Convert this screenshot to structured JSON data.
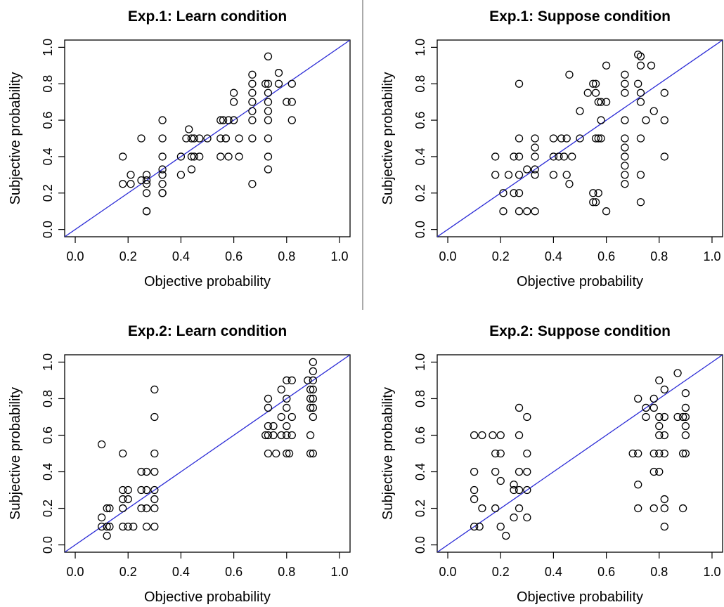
{
  "figure": {
    "line_color": "#2b2bd6",
    "marker": "open-circle"
  },
  "chart_data": [
    {
      "type": "scatter",
      "title": "Exp.1: Learn condition",
      "xlabel": "Objective probability",
      "ylabel": "Subjective probability",
      "xlim": [
        0,
        1
      ],
      "ylim": [
        0,
        1
      ],
      "xticks": [
        "0.0",
        "0.2",
        "0.4",
        "0.6",
        "0.8",
        "1.0"
      ],
      "yticks": [
        "0.0",
        "0.2",
        "0.4",
        "0.6",
        "0.8",
        "1.0"
      ],
      "reference_line": "y = x",
      "points": [
        [
          0.18,
          0.4
        ],
        [
          0.18,
          0.25
        ],
        [
          0.21,
          0.3
        ],
        [
          0.21,
          0.25
        ],
        [
          0.25,
          0.5
        ],
        [
          0.25,
          0.27
        ],
        [
          0.27,
          0.3
        ],
        [
          0.27,
          0.27
        ],
        [
          0.27,
          0.25
        ],
        [
          0.27,
          0.2
        ],
        [
          0.27,
          0.1
        ],
        [
          0.27,
          0.1
        ],
        [
          0.33,
          0.6
        ],
        [
          0.33,
          0.5
        ],
        [
          0.33,
          0.4
        ],
        [
          0.33,
          0.33
        ],
        [
          0.33,
          0.3
        ],
        [
          0.33,
          0.25
        ],
        [
          0.33,
          0.2
        ],
        [
          0.33,
          0.2
        ],
        [
          0.4,
          0.4
        ],
        [
          0.4,
          0.3
        ],
        [
          0.42,
          0.5
        ],
        [
          0.43,
          0.55
        ],
        [
          0.44,
          0.5
        ],
        [
          0.45,
          0.5
        ],
        [
          0.44,
          0.4
        ],
        [
          0.45,
          0.4
        ],
        [
          0.44,
          0.33
        ],
        [
          0.47,
          0.4
        ],
        [
          0.47,
          0.5
        ],
        [
          0.5,
          0.5
        ],
        [
          0.55,
          0.6
        ],
        [
          0.55,
          0.5
        ],
        [
          0.56,
          0.6
        ],
        [
          0.57,
          0.5
        ],
        [
          0.57,
          0.5
        ],
        [
          0.58,
          0.6
        ],
        [
          0.55,
          0.4
        ],
        [
          0.58,
          0.4
        ],
        [
          0.6,
          0.7
        ],
        [
          0.6,
          0.75
        ],
        [
          0.6,
          0.6
        ],
        [
          0.62,
          0.5
        ],
        [
          0.62,
          0.4
        ],
        [
          0.67,
          0.85
        ],
        [
          0.67,
          0.8
        ],
        [
          0.67,
          0.75
        ],
        [
          0.67,
          0.7
        ],
        [
          0.67,
          0.65
        ],
        [
          0.67,
          0.6
        ],
        [
          0.67,
          0.5
        ],
        [
          0.67,
          0.25
        ],
        [
          0.72,
          0.8
        ],
        [
          0.73,
          0.95
        ],
        [
          0.73,
          0.8
        ],
        [
          0.73,
          0.75
        ],
        [
          0.73,
          0.7
        ],
        [
          0.73,
          0.65
        ],
        [
          0.73,
          0.6
        ],
        [
          0.73,
          0.5
        ],
        [
          0.73,
          0.4
        ],
        [
          0.73,
          0.33
        ],
        [
          0.77,
          0.86
        ],
        [
          0.77,
          0.8
        ],
        [
          0.8,
          0.7
        ],
        [
          0.82,
          0.8
        ],
        [
          0.82,
          0.7
        ],
        [
          0.82,
          0.6
        ]
      ]
    },
    {
      "type": "scatter",
      "title": "Exp.1: Suppose condition",
      "xlabel": "Objective probability",
      "ylabel": "Subjective probability",
      "xlim": [
        0,
        1
      ],
      "ylim": [
        0,
        1
      ],
      "xticks": [
        "0.0",
        "0.2",
        "0.4",
        "0.6",
        "0.8",
        "1.0"
      ],
      "yticks": [
        "0.0",
        "0.2",
        "0.4",
        "0.6",
        "0.8",
        "1.0"
      ],
      "reference_line": "y = x",
      "points": [
        [
          0.18,
          0.4
        ],
        [
          0.18,
          0.3
        ],
        [
          0.21,
          0.2
        ],
        [
          0.21,
          0.1
        ],
        [
          0.23,
          0.3
        ],
        [
          0.25,
          0.4
        ],
        [
          0.25,
          0.2
        ],
        [
          0.27,
          0.8
        ],
        [
          0.27,
          0.5
        ],
        [
          0.27,
          0.4
        ],
        [
          0.27,
          0.3
        ],
        [
          0.27,
          0.2
        ],
        [
          0.27,
          0.1
        ],
        [
          0.3,
          0.33
        ],
        [
          0.3,
          0.1
        ],
        [
          0.33,
          0.5
        ],
        [
          0.33,
          0.45
        ],
        [
          0.33,
          0.4
        ],
        [
          0.33,
          0.33
        ],
        [
          0.33,
          0.3
        ],
        [
          0.33,
          0.1
        ],
        [
          0.4,
          0.5
        ],
        [
          0.4,
          0.4
        ],
        [
          0.4,
          0.3
        ],
        [
          0.42,
          0.4
        ],
        [
          0.43,
          0.5
        ],
        [
          0.44,
          0.4
        ],
        [
          0.45,
          0.5
        ],
        [
          0.45,
          0.3
        ],
        [
          0.46,
          0.25
        ],
        [
          0.47,
          0.4
        ],
        [
          0.5,
          0.5
        ],
        [
          0.46,
          0.85
        ],
        [
          0.5,
          0.65
        ],
        [
          0.53,
          0.75
        ],
        [
          0.55,
          0.8
        ],
        [
          0.56,
          0.8
        ],
        [
          0.56,
          0.75
        ],
        [
          0.57,
          0.7
        ],
        [
          0.56,
          0.5
        ],
        [
          0.57,
          0.5
        ],
        [
          0.58,
          0.7
        ],
        [
          0.58,
          0.6
        ],
        [
          0.58,
          0.5
        ],
        [
          0.55,
          0.2
        ],
        [
          0.55,
          0.15
        ],
        [
          0.57,
          0.2
        ],
        [
          0.56,
          0.15
        ],
        [
          0.6,
          0.1
        ],
        [
          0.6,
          0.9
        ],
        [
          0.6,
          0.7
        ],
        [
          0.67,
          0.85
        ],
        [
          0.67,
          0.8
        ],
        [
          0.67,
          0.75
        ],
        [
          0.67,
          0.6
        ],
        [
          0.67,
          0.5
        ],
        [
          0.67,
          0.45
        ],
        [
          0.67,
          0.4
        ],
        [
          0.67,
          0.35
        ],
        [
          0.67,
          0.3
        ],
        [
          0.67,
          0.25
        ],
        [
          0.72,
          0.96
        ],
        [
          0.73,
          0.95
        ],
        [
          0.73,
          0.9
        ],
        [
          0.72,
          0.8
        ],
        [
          0.73,
          0.75
        ],
        [
          0.73,
          0.7
        ],
        [
          0.73,
          0.5
        ],
        [
          0.73,
          0.3
        ],
        [
          0.73,
          0.15
        ],
        [
          0.75,
          0.6
        ],
        [
          0.77,
          0.9
        ],
        [
          0.78,
          0.65
        ],
        [
          0.82,
          0.75
        ],
        [
          0.82,
          0.6
        ],
        [
          0.82,
          0.4
        ]
      ]
    },
    {
      "type": "scatter",
      "title": "Exp.2: Learn condition",
      "xlabel": "Objective probability",
      "ylabel": "Subjective probability",
      "xlim": [
        0,
        1
      ],
      "ylim": [
        0,
        1
      ],
      "xticks": [
        "0.0",
        "0.2",
        "0.4",
        "0.6",
        "0.8",
        "1.0"
      ],
      "yticks": [
        "0.0",
        "0.2",
        "0.4",
        "0.6",
        "0.8",
        "1.0"
      ],
      "reference_line": "y = x",
      "points": [
        [
          0.1,
          0.55
        ],
        [
          0.1,
          0.15
        ],
        [
          0.1,
          0.1
        ],
        [
          0.12,
          0.2
        ],
        [
          0.12,
          0.1
        ],
        [
          0.12,
          0.05
        ],
        [
          0.13,
          0.2
        ],
        [
          0.13,
          0.1
        ],
        [
          0.18,
          0.5
        ],
        [
          0.18,
          0.3
        ],
        [
          0.18,
          0.25
        ],
        [
          0.18,
          0.2
        ],
        [
          0.18,
          0.1
        ],
        [
          0.2,
          0.3
        ],
        [
          0.2,
          0.25
        ],
        [
          0.2,
          0.1
        ],
        [
          0.22,
          0.1
        ],
        [
          0.25,
          0.4
        ],
        [
          0.25,
          0.3
        ],
        [
          0.25,
          0.2
        ],
        [
          0.27,
          0.4
        ],
        [
          0.27,
          0.3
        ],
        [
          0.27,
          0.2
        ],
        [
          0.27,
          0.1
        ],
        [
          0.3,
          0.85
        ],
        [
          0.3,
          0.7
        ],
        [
          0.3,
          0.5
        ],
        [
          0.3,
          0.4
        ],
        [
          0.3,
          0.3
        ],
        [
          0.3,
          0.25
        ],
        [
          0.3,
          0.2
        ],
        [
          0.3,
          0.1
        ],
        [
          0.72,
          0.6
        ],
        [
          0.73,
          0.8
        ],
        [
          0.73,
          0.75
        ],
        [
          0.73,
          0.65
        ],
        [
          0.73,
          0.6
        ],
        [
          0.73,
          0.5
        ],
        [
          0.75,
          0.65
        ],
        [
          0.75,
          0.6
        ],
        [
          0.76,
          0.5
        ],
        [
          0.78,
          0.85
        ],
        [
          0.78,
          0.7
        ],
        [
          0.78,
          0.6
        ],
        [
          0.8,
          0.9
        ],
        [
          0.8,
          0.8
        ],
        [
          0.8,
          0.75
        ],
        [
          0.8,
          0.65
        ],
        [
          0.8,
          0.6
        ],
        [
          0.8,
          0.5
        ],
        [
          0.81,
          0.5
        ],
        [
          0.82,
          0.9
        ],
        [
          0.82,
          0.7
        ],
        [
          0.82,
          0.6
        ],
        [
          0.88,
          0.9
        ],
        [
          0.89,
          0.85
        ],
        [
          0.89,
          0.8
        ],
        [
          0.89,
          0.75
        ],
        [
          0.89,
          0.6
        ],
        [
          0.89,
          0.5
        ],
        [
          0.9,
          1.0
        ],
        [
          0.9,
          0.95
        ],
        [
          0.9,
          0.9
        ],
        [
          0.9,
          0.85
        ],
        [
          0.9,
          0.8
        ],
        [
          0.9,
          0.75
        ],
        [
          0.9,
          0.7
        ],
        [
          0.9,
          0.5
        ]
      ]
    },
    {
      "type": "scatter",
      "title": "Exp.2: Suppose condition",
      "xlabel": "Objective probability",
      "ylabel": "Subjective probability",
      "xlim": [
        0,
        1
      ],
      "ylim": [
        0,
        1
      ],
      "xticks": [
        "0.0",
        "0.2",
        "0.4",
        "0.6",
        "0.8",
        "1.0"
      ],
      "yticks": [
        "0.0",
        "0.2",
        "0.4",
        "0.6",
        "0.8",
        "1.0"
      ],
      "reference_line": "y = x",
      "points": [
        [
          0.1,
          0.6
        ],
        [
          0.1,
          0.4
        ],
        [
          0.1,
          0.3
        ],
        [
          0.1,
          0.25
        ],
        [
          0.1,
          0.1
        ],
        [
          0.12,
          0.1
        ],
        [
          0.13,
          0.6
        ],
        [
          0.13,
          0.2
        ],
        [
          0.17,
          0.6
        ],
        [
          0.18,
          0.5
        ],
        [
          0.18,
          0.4
        ],
        [
          0.18,
          0.2
        ],
        [
          0.2,
          0.6
        ],
        [
          0.2,
          0.5
        ],
        [
          0.2,
          0.35
        ],
        [
          0.2,
          0.1
        ],
        [
          0.22,
          0.05
        ],
        [
          0.25,
          0.33
        ],
        [
          0.25,
          0.3
        ],
        [
          0.25,
          0.15
        ],
        [
          0.27,
          0.75
        ],
        [
          0.27,
          0.6
        ],
        [
          0.27,
          0.4
        ],
        [
          0.27,
          0.3
        ],
        [
          0.27,
          0.2
        ],
        [
          0.3,
          0.7
        ],
        [
          0.3,
          0.5
        ],
        [
          0.3,
          0.4
        ],
        [
          0.3,
          0.3
        ],
        [
          0.3,
          0.15
        ],
        [
          0.7,
          0.5
        ],
        [
          0.72,
          0.8
        ],
        [
          0.72,
          0.5
        ],
        [
          0.72,
          0.33
        ],
        [
          0.72,
          0.2
        ],
        [
          0.75,
          0.75
        ],
        [
          0.75,
          0.7
        ],
        [
          0.78,
          0.8
        ],
        [
          0.78,
          0.75
        ],
        [
          0.78,
          0.5
        ],
        [
          0.78,
          0.4
        ],
        [
          0.78,
          0.2
        ],
        [
          0.8,
          0.9
        ],
        [
          0.8,
          0.7
        ],
        [
          0.8,
          0.65
        ],
        [
          0.8,
          0.6
        ],
        [
          0.8,
          0.5
        ],
        [
          0.8,
          0.4
        ],
        [
          0.82,
          0.85
        ],
        [
          0.82,
          0.7
        ],
        [
          0.82,
          0.6
        ],
        [
          0.82,
          0.5
        ],
        [
          0.82,
          0.25
        ],
        [
          0.82,
          0.2
        ],
        [
          0.82,
          0.1
        ],
        [
          0.87,
          0.94
        ],
        [
          0.87,
          0.7
        ],
        [
          0.89,
          0.7
        ],
        [
          0.89,
          0.5
        ],
        [
          0.89,
          0.2
        ],
        [
          0.9,
          0.83
        ],
        [
          0.9,
          0.75
        ],
        [
          0.9,
          0.7
        ],
        [
          0.9,
          0.65
        ],
        [
          0.9,
          0.6
        ],
        [
          0.9,
          0.5
        ]
      ]
    }
  ]
}
